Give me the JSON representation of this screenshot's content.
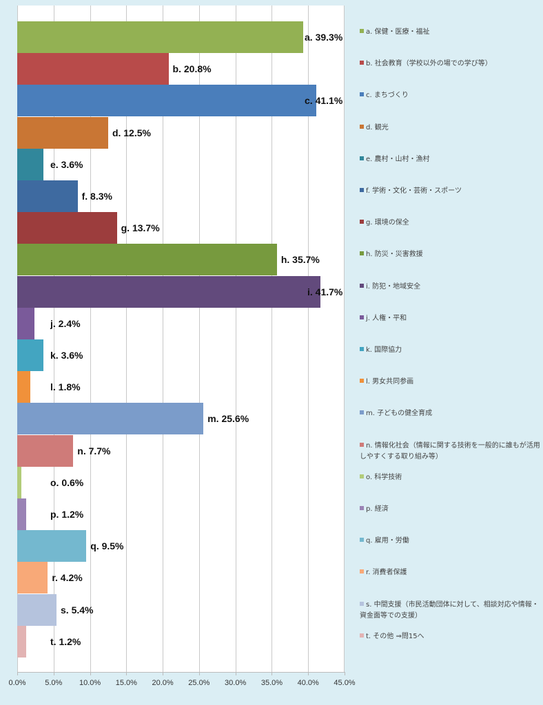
{
  "chart_data": {
    "type": "bar",
    "orientation": "horizontal",
    "xlim": [
      0,
      45
    ],
    "x_ticks": [
      "0.0%",
      "5.0%",
      "10.0%",
      "15.0%",
      "20.0%",
      "25.0%",
      "30.0%",
      "35.0%",
      "40.0%",
      "45.0%"
    ],
    "grid": true,
    "legend_position": "right",
    "series": [
      {
        "key": "a.",
        "value": 39.3,
        "label": "a. 39.3%",
        "legend": "a. 保健・医療・福祉",
        "color": "#93b153"
      },
      {
        "key": "b.",
        "value": 20.8,
        "label": "b. 20.8%",
        "legend": "b. 社会教育（学校以外の場での学び等）",
        "color": "#b84b4a"
      },
      {
        "key": "c.",
        "value": 41.1,
        "label": "c. 41.1%",
        "legend": "c. まちづくり",
        "color": "#4a7ebb"
      },
      {
        "key": "d.",
        "value": 12.5,
        "label": "d. 12.5%",
        "legend": "d. 観光",
        "color": "#c97634"
      },
      {
        "key": "e.",
        "value": 3.6,
        "label": "e. 3.6%",
        "legend": "e. 農村・山村・漁村",
        "color": "#31879b"
      },
      {
        "key": "f.",
        "value": 8.3,
        "label": "f. 8.3%",
        "legend": "f. 学術・文化・芸術・スポーツ",
        "color": "#3e6aa0"
      },
      {
        "key": "g.",
        "value": 13.7,
        "label": "g. 13.7%",
        "legend": "g. 環境の保全",
        "color": "#9c3d3d"
      },
      {
        "key": "h.",
        "value": 35.7,
        "label": "h. 35.7%",
        "legend": "h. 防災・災害救援",
        "color": "#779a3e"
      },
      {
        "key": "i.",
        "value": 41.7,
        "label": "i.  41.7%",
        "legend": "i. 防犯・地域安全",
        "color": "#624a7c"
      },
      {
        "key": "j.",
        "value": 2.4,
        "label": "j. 2.4%",
        "legend": "j. 人権・平和",
        "color": "#7a5a9a"
      },
      {
        "key": "k.",
        "value": 3.6,
        "label": "k. 3.6%",
        "legend": "k. 国際協力",
        "color": "#43a5c1"
      },
      {
        "key": "l.",
        "value": 1.8,
        "label": "l. 1.8%",
        "legend": "l. 男女共同参画",
        "color": "#f0913a"
      },
      {
        "key": "m.",
        "value": 25.6,
        "label": "m. 25.6%",
        "legend": "m. 子どもの健全育成",
        "color": "#7b9cca"
      },
      {
        "key": "n.",
        "value": 7.7,
        "label": "n. 7.7%",
        "legend": "n. 情報化社会（情報に関する技術を一般的に誰もが活用しやすくする取り組み等）",
        "color": "#cf7b79"
      },
      {
        "key": "o.",
        "value": 0.6,
        "label": "o. 0.6%",
        "legend": "o. 科学技術",
        "color": "#b2cc7a"
      },
      {
        "key": "p.",
        "value": 1.2,
        "label": "p. 1.2%",
        "legend": "p. 経済",
        "color": "#9a83b5"
      },
      {
        "key": "q.",
        "value": 9.5,
        "label": "q. 9.5%",
        "legend": "q. 雇用・労働",
        "color": "#74b8cf"
      },
      {
        "key": "r.",
        "value": 4.2,
        "label": "r. 4.2%",
        "legend": "r. 消費者保護",
        "color": "#f8a978"
      },
      {
        "key": "s.",
        "value": 5.4,
        "label": "s. 5.4%",
        "legend": "s. 中間支援（市民活動団体に対して、相談対応や情報・資金面等での支援）",
        "color": "#b5c3dd"
      },
      {
        "key": "t.",
        "value": 1.2,
        "label": "t. 1.2%",
        "legend": "t. その他 ⇒問15へ",
        "color": "#e2b3b3"
      }
    ]
  }
}
